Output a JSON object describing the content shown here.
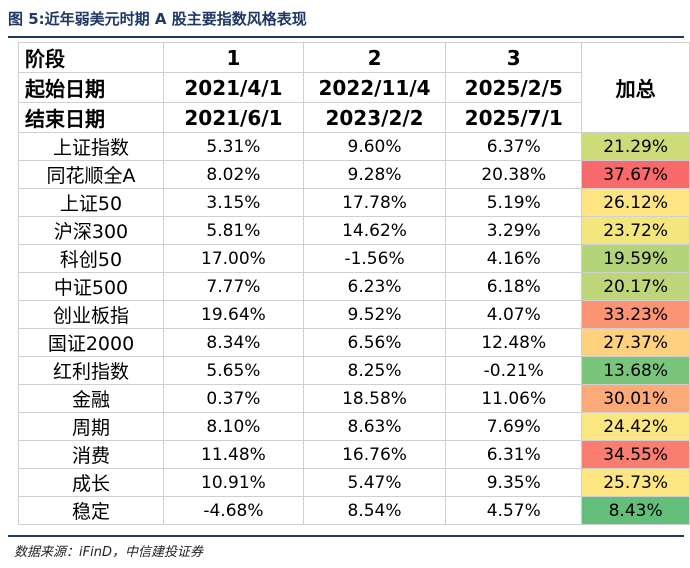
{
  "title": "图 5:近年弱美元时期 A 股主要指数风格表现",
  "source": "数据来源：iFinD，中信建投证券",
  "header": {
    "row1": {
      "label": "阶段",
      "p1": "1",
      "p2": "2",
      "p3": "3"
    },
    "row2": {
      "label": "起始日期",
      "p1": "2021/4/1",
      "p2": "2022/11/4",
      "p3": "2025/2/5",
      "total": "加总"
    },
    "row3": {
      "label": "结束日期",
      "p1": "2021/6/1",
      "p2": "2023/2/2",
      "p3": "2025/7/1"
    }
  },
  "rows": [
    {
      "name": "上证指数",
      "p1": "5.31%",
      "p2": "9.60%",
      "p3": "6.37%",
      "total": "21.29%",
      "color": "#cddb78"
    },
    {
      "name": "同花顺全A",
      "p1": "8.02%",
      "p2": "9.28%",
      "p3": "20.38%",
      "total": "37.67%",
      "color": "#f8696b"
    },
    {
      "name": "上证50",
      "p1": "3.15%",
      "p2": "17.78%",
      "p3": "5.19%",
      "total": "26.12%",
      "color": "#fee482"
    },
    {
      "name": "沪深300",
      "p1": "5.81%",
      "p2": "14.62%",
      "p3": "3.29%",
      "total": "23.72%",
      "color": "#f3e67f"
    },
    {
      "name": "科创50",
      "p1": "17.00%",
      "p2": "-1.56%",
      "p3": "4.16%",
      "total": "19.59%",
      "color": "#b4d47a"
    },
    {
      "name": "中证500",
      "p1": "7.77%",
      "p2": "6.23%",
      "p3": "6.18%",
      "total": "20.17%",
      "color": "#bcd679"
    },
    {
      "name": "创业板指",
      "p1": "19.64%",
      "p2": "9.52%",
      "p3": "4.07%",
      "total": "33.23%",
      "color": "#fa9473"
    },
    {
      "name": "国证2000",
      "p1": "8.34%",
      "p2": "6.56%",
      "p3": "12.48%",
      "total": "27.37%",
      "color": "#fed17f"
    },
    {
      "name": "红利指数",
      "p1": "5.65%",
      "p2": "8.25%",
      "p3": "-0.21%",
      "total": "13.68%",
      "color": "#7ac57c"
    },
    {
      "name": "金融",
      "p1": "0.37%",
      "p2": "18.58%",
      "p3": "11.06%",
      "total": "30.01%",
      "color": "#fcaa78"
    },
    {
      "name": "周期",
      "p1": "8.10%",
      "p2": "8.63%",
      "p3": "7.69%",
      "total": "24.42%",
      "color": "#fae782"
    },
    {
      "name": "消费",
      "p1": "11.48%",
      "p2": "16.76%",
      "p3": "6.31%",
      "total": "34.55%",
      "color": "#f97e6f"
    },
    {
      "name": "成长",
      "p1": "10.91%",
      "p2": "5.47%",
      "p3": "9.35%",
      "total": "25.73%",
      "color": "#fee683"
    },
    {
      "name": "稳定",
      "p1": "-4.68%",
      "p2": "8.54%",
      "p3": "4.57%",
      "total": "8.43%",
      "color": "#63be7b"
    }
  ]
}
